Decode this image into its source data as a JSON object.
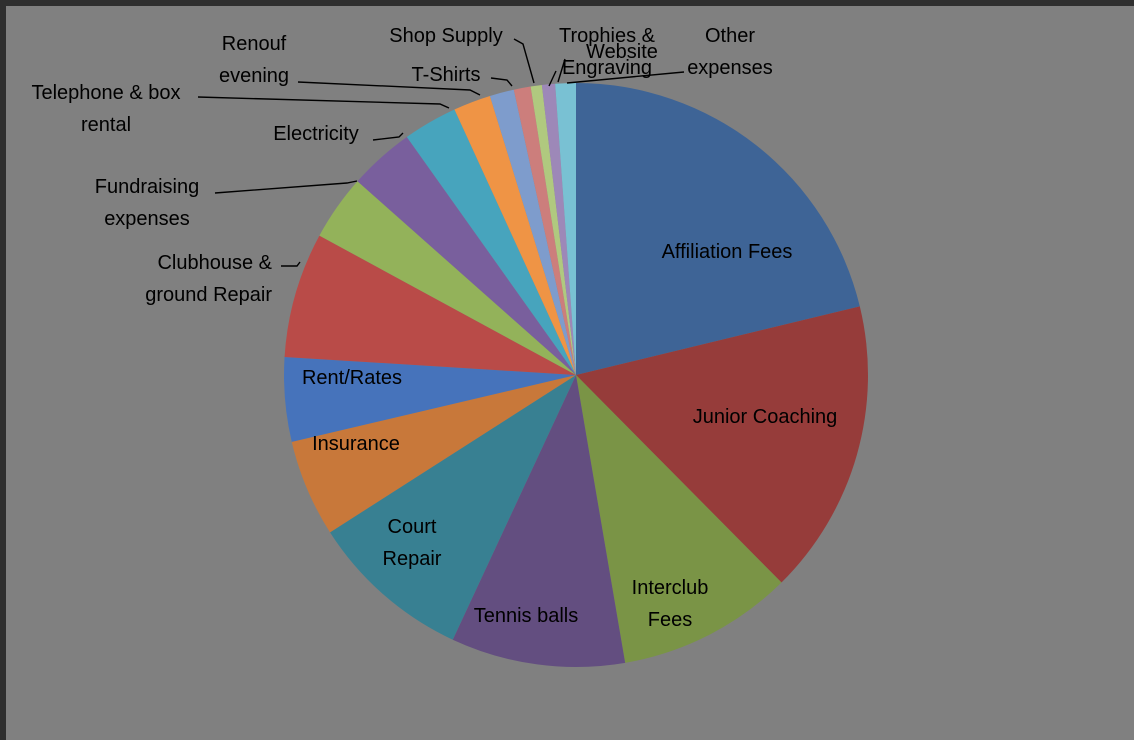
{
  "chart_data": {
    "type": "pie",
    "title": "",
    "legend": "none",
    "slices": [
      {
        "label": "Affiliation Fees",
        "value": 20.5,
        "color": "#3e6496"
      },
      {
        "label": "Junior Coaching",
        "value": 15.8,
        "color": "#963c3a"
      },
      {
        "label": "Interclub Fees",
        "value": 9.4,
        "color": "#7a9446"
      },
      {
        "label": "Tennis balls",
        "value": 9.3,
        "color": "#634e80"
      },
      {
        "label": "Court Repair",
        "value": 8.7,
        "color": "#388092"
      },
      {
        "label": "Insurance",
        "value": 5.2,
        "color": "#c8783a"
      },
      {
        "label": "Rent/Rates",
        "value": 4.5,
        "color": "#4673bb"
      },
      {
        "label": "Clubhouse & ground Repair",
        "value": 6.7,
        "color": "#b94b48"
      },
      {
        "label": "Fundraising expenses",
        "value": 3.5,
        "color": "#93b25a"
      },
      {
        "label": "Electricity",
        "value": 3.5,
        "color": "#795f9d"
      },
      {
        "label": "Telephone & box rental",
        "value": 2.9,
        "color": "#47a4bd"
      },
      {
        "label": "Renouf evening",
        "value": 2.0,
        "color": "#ef9445"
      },
      {
        "label": "T-Shirts",
        "value": 1.3,
        "color": "#7e9ccc"
      },
      {
        "label": "Shop Supply",
        "value": 0.9,
        "color": "#cc7e7c"
      },
      {
        "label": "Trophies & Engraving",
        "value": 0.6,
        "color": "#b0c97f"
      },
      {
        "label": "Website",
        "value": 0.7,
        "color": "#9d88b8"
      },
      {
        "label": "Other expenses",
        "value": 1.1,
        "color": "#79c1d3"
      }
    ]
  }
}
